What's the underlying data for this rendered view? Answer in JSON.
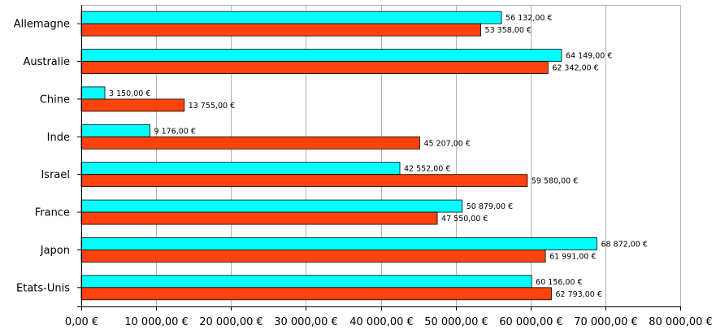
{
  "chart_data": {
    "type": "bar",
    "orientation": "horizontal",
    "categories": [
      "Allemagne",
      "Australie",
      "Chine",
      "Inde",
      "Israel",
      "France",
      "Japon",
      "Etats-Unis"
    ],
    "series": [
      {
        "color": "#00ffff",
        "values": [
          56132,
          64149,
          3150,
          9176,
          42552,
          50879,
          68872,
          60156
        ],
        "labels": [
          "56 132,00 €",
          "64 149,00 €",
          "3 150,00 €",
          "9 176,00 €",
          "42 552,00 €",
          "50 879,00 €",
          "68 872,00 €",
          "60 156,00 €"
        ]
      },
      {
        "color": "#ff420e",
        "values": [
          53358,
          62342,
          13755,
          45207,
          59580,
          47550,
          61991,
          62793
        ],
        "labels": [
          "53 358,00 €",
          "62 342,00 €",
          "13 755,00 €",
          "45 207,00 €",
          "59 580,00 €",
          "47 550,00 €",
          "61 991,00 €",
          "62 793,00 €"
        ]
      }
    ],
    "xlim": [
      0,
      80000
    ],
    "ticks": [
      0,
      10000,
      20000,
      30000,
      40000,
      50000,
      60000,
      70000,
      80000
    ],
    "tick_labels": [
      "0,00 €",
      "10 000,00 €",
      "20 000,00 €",
      "30 000,00 €",
      "40 000,00 €",
      "50 000,00 €",
      "60 000,00 €",
      "70 000,00 €",
      "80 000,00 €"
    ],
    "grid": true,
    "legend": "none",
    "title": "",
    "xlabel": "",
    "ylabel": ""
  }
}
